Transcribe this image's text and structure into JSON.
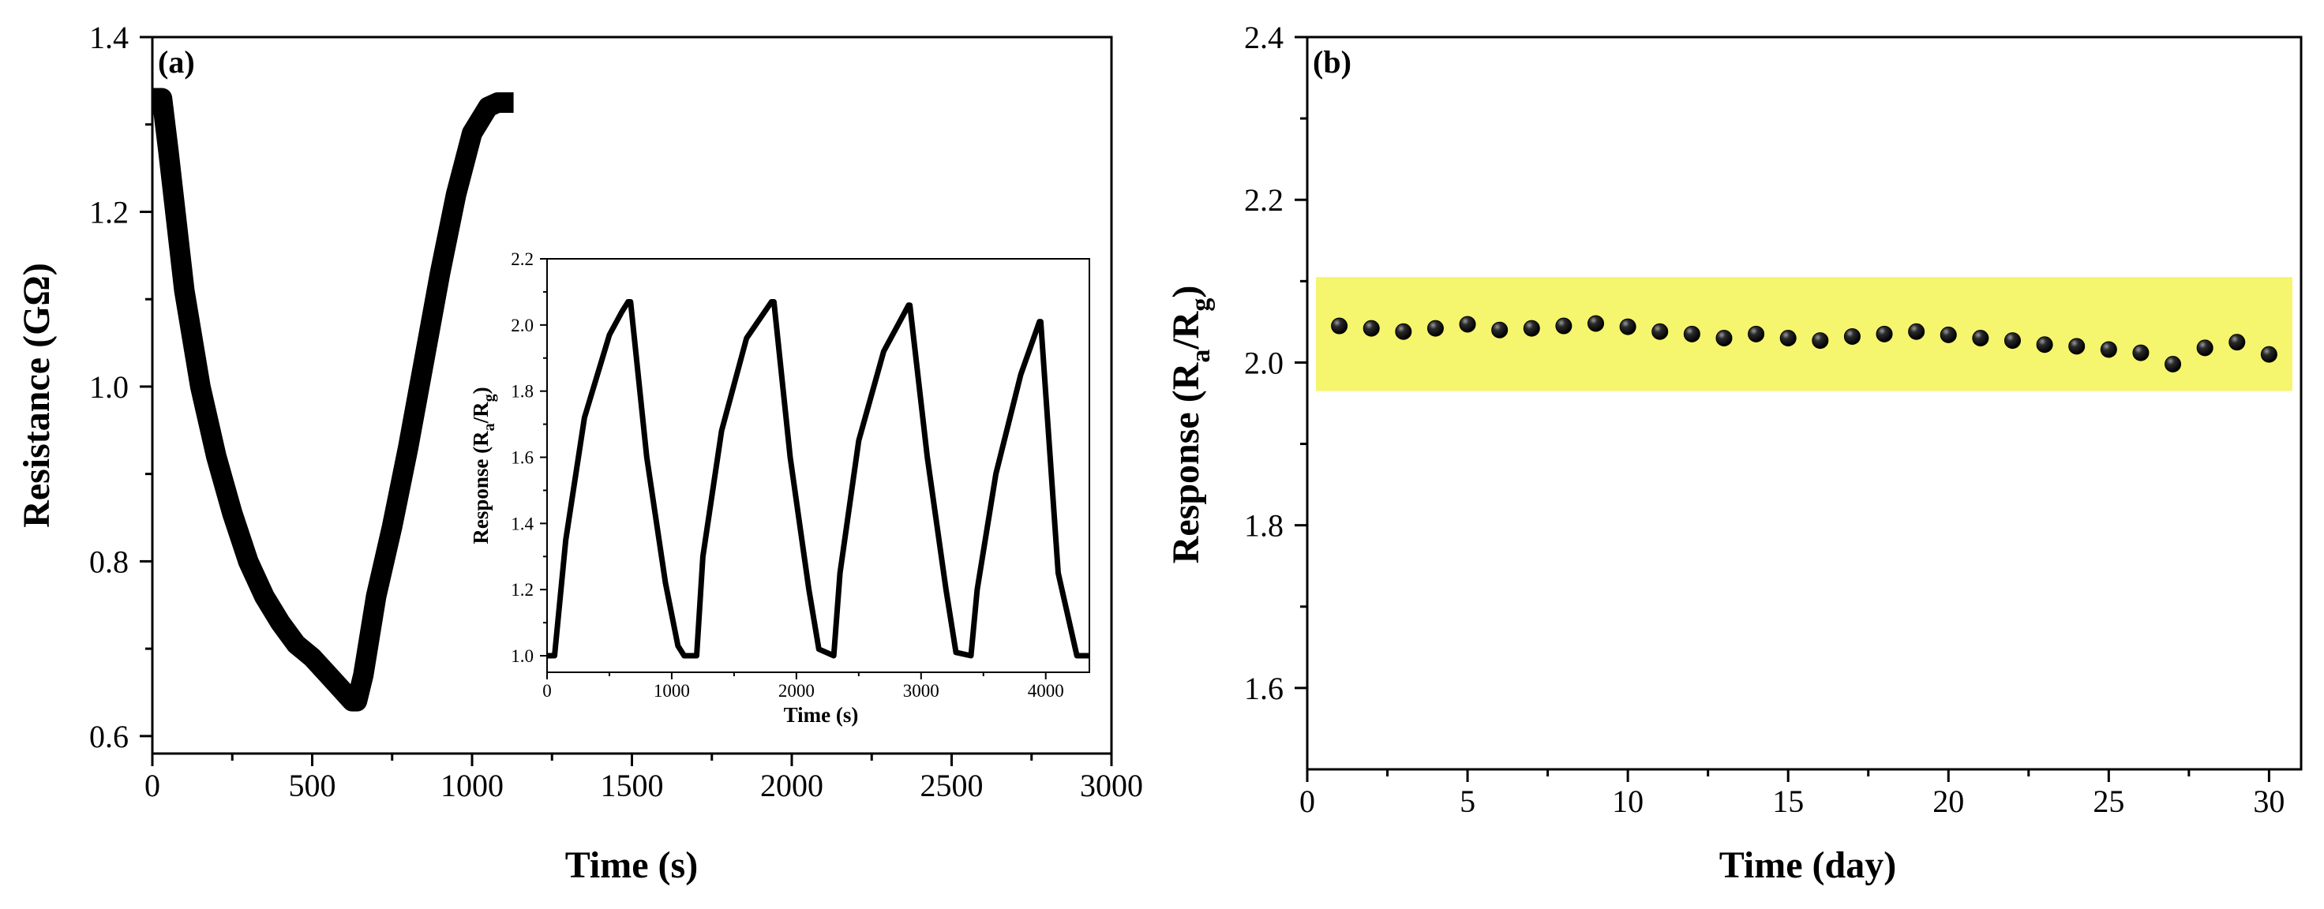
{
  "chart_data": [
    {
      "panel": "(a)",
      "type": "line",
      "xlabel": "Time (s)",
      "ylabel": "Resistance (GΩ)",
      "xlim": [
        0,
        3000
      ],
      "ylim": [
        0.58,
        1.4
      ],
      "xticks": [
        0,
        500,
        1000,
        1500,
        2000,
        2500,
        3000
      ],
      "yticks": [
        0.6,
        0.8,
        1.0,
        1.2,
        1.4
      ],
      "ytick_labels": [
        "0.6",
        "0.8",
        "1.0",
        "1.2",
        "1.4"
      ],
      "series": [
        {
          "name": "Resistance",
          "x": [
            0,
            30,
            50,
            100,
            150,
            200,
            250,
            300,
            350,
            400,
            450,
            500,
            550,
            600,
            625,
            640,
            660,
            700,
            750,
            800,
            850,
            900,
            950,
            1000,
            1050,
            1080,
            1100,
            1130
          ],
          "y": [
            1.33,
            1.33,
            1.27,
            1.11,
            1.0,
            0.92,
            0.855,
            0.8,
            0.76,
            0.73,
            0.705,
            0.69,
            0.67,
            0.65,
            0.64,
            0.64,
            0.67,
            0.76,
            0.84,
            0.93,
            1.03,
            1.13,
            1.22,
            1.29,
            1.32,
            1.325,
            1.325,
            1.325
          ]
        }
      ],
      "inset": {
        "type": "line",
        "xlabel": "Time (s)",
        "ylabel": "Response (R",
        "ylabel_sub1": "a",
        "ylabel_mid": "/R",
        "ylabel_sub2": "g",
        "ylabel_end": ")",
        "xlim": [
          0,
          4350
        ],
        "ylim": [
          0.95,
          2.2
        ],
        "xticks": [
          0,
          1000,
          2000,
          3000,
          4000
        ],
        "yticks": [
          1.0,
          1.2,
          1.4,
          1.6,
          1.8,
          2.0,
          2.2
        ],
        "ytick_labels": [
          "1.0",
          "1.2",
          "1.4",
          "1.6",
          "1.8",
          "2.0",
          "2.2"
        ],
        "series": [
          {
            "name": "Response cycles",
            "x": [
              0,
              60,
              150,
              300,
              500,
              600,
              650,
              670,
              800,
              950,
              1050,
              1100,
              1200,
              1250,
              1400,
              1600,
              1800,
              1820,
              1950,
              2100,
              2180,
              2300,
              2350,
              2500,
              2700,
              2900,
              2910,
              3050,
              3200,
              3280,
              3400,
              3450,
              3600,
              3800,
              3950,
              3960,
              4100,
              4250,
              4350
            ],
            "y": [
              1.0,
              1.0,
              1.35,
              1.72,
              1.97,
              2.04,
              2.07,
              2.07,
              1.6,
              1.22,
              1.03,
              1.0,
              1.0,
              1.3,
              1.68,
              1.96,
              2.07,
              2.07,
              1.6,
              1.2,
              1.02,
              1.0,
              1.25,
              1.65,
              1.92,
              2.06,
              2.06,
              1.6,
              1.2,
              1.01,
              1.0,
              1.2,
              1.55,
              1.85,
              2.01,
              2.01,
              1.25,
              1.0,
              1.0
            ]
          }
        ]
      }
    },
    {
      "panel": "(b)",
      "type": "scatter",
      "xlabel": "Time (day)",
      "ylabel": "Response (R",
      "ylabel_sub1": "a",
      "ylabel_mid": "/R",
      "ylabel_sub2": "g",
      "ylabel_end": ")",
      "xlim": [
        0,
        31
      ],
      "ylim": [
        1.5,
        2.4
      ],
      "xticks": [
        0,
        5,
        10,
        15,
        20,
        25,
        30
      ],
      "yticks": [
        1.6,
        1.8,
        2.0,
        2.2,
        2.4
      ],
      "ytick_labels": [
        "1.6",
        "1.8",
        "2.0",
        "2.2",
        "2.4"
      ],
      "band": {
        "y0": 1.965,
        "y1": 2.105,
        "color": "#f5f56e"
      },
      "series": [
        {
          "name": "Response",
          "x": [
            1,
            2,
            3,
            4,
            5,
            6,
            7,
            8,
            9,
            10,
            11,
            12,
            13,
            14,
            15,
            16,
            17,
            18,
            19,
            20,
            21,
            22,
            23,
            24,
            25,
            26,
            27,
            28,
            29,
            30
          ],
          "y": [
            2.045,
            2.042,
            2.038,
            2.042,
            2.047,
            2.04,
            2.042,
            2.045,
            2.048,
            2.044,
            2.038,
            2.035,
            2.03,
            2.035,
            2.03,
            2.027,
            2.032,
            2.035,
            2.038,
            2.034,
            2.03,
            2.027,
            2.022,
            2.02,
            2.016,
            2.012,
            1.998,
            2.018,
            2.025,
            2.01
          ]
        }
      ]
    }
  ]
}
